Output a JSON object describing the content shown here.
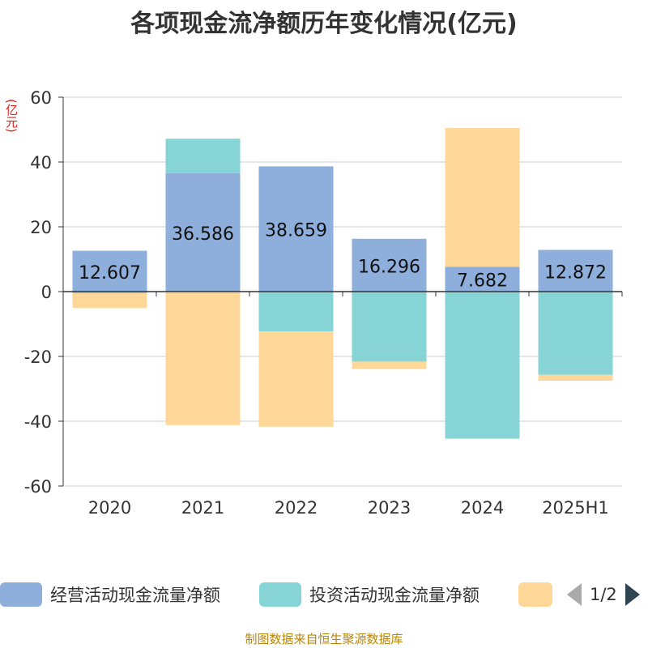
{
  "title": "各项现金流净额历年变化情况(亿元)",
  "unit_label": "(亿元)",
  "source": "制图数据来自恒生聚源数据库",
  "legend": {
    "items": [
      {
        "label": "经营活动现金流量净额",
        "color": "#8eaedb"
      },
      {
        "label": "投资活动现金流量净额",
        "color": "#86d4d6"
      },
      {
        "label": "",
        "color": "#ffd899"
      }
    ],
    "page": "1/2"
  },
  "chart_data": {
    "type": "bar",
    "stacked": true,
    "categories": [
      "2020",
      "2021",
      "2022",
      "2023",
      "2024",
      "2025H1"
    ],
    "series": [
      {
        "name": "经营活动现金流量净额",
        "color": "#8eaedb",
        "values": [
          12.607,
          36.586,
          38.659,
          16.296,
          7.682,
          12.872
        ]
      },
      {
        "name": "投资活动现金流量净额",
        "color": "#86d4d6",
        "values": [
          -0.5,
          10.6,
          -12.3,
          -21.6,
          -45.4,
          -25.7
        ]
      },
      {
        "name": "",
        "color": "#ffd899",
        "values": [
          -4.6,
          -41.2,
          -29.4,
          -2.3,
          42.8,
          -1.8
        ]
      }
    ],
    "data_labels": [
      "12.607",
      "36.586",
      "38.659",
      "16.296",
      "7.682",
      "12.872"
    ],
    "ylim": [
      -60,
      60
    ],
    "yticks": [
      "60",
      "40",
      "20",
      "0",
      "-20",
      "-40",
      "-60"
    ],
    "grid": true
  }
}
